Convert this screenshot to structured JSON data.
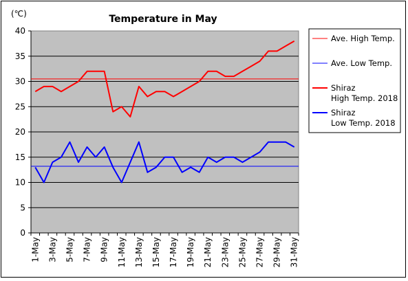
{
  "chart_data": {
    "type": "line",
    "title": "Temperature in May",
    "ylabel": "(℃)",
    "ylim": [
      0,
      40
    ],
    "yticks": [
      0,
      5,
      10,
      15,
      20,
      25,
      30,
      35,
      40
    ],
    "grid": "horizontal",
    "legend_position": "right",
    "x_tick_labels": [
      "1-May",
      "3-May",
      "5-May",
      "7-May",
      "9-May",
      "11-May",
      "13-May",
      "15-May",
      "17-May",
      "19-May",
      "21-May",
      "23-May",
      "25-May",
      "27-May",
      "29-May",
      "31-May"
    ],
    "days": [
      1,
      2,
      3,
      4,
      5,
      6,
      7,
      8,
      9,
      10,
      11,
      12,
      13,
      14,
      15,
      16,
      17,
      18,
      19,
      20,
      21,
      22,
      23,
      24,
      25,
      26,
      27,
      28,
      29,
      30,
      31
    ],
    "series": [
      {
        "name": "Ave. High Temp.",
        "color": "#ff0000",
        "width": 1,
        "constant": 30.5
      },
      {
        "name": "Ave. Low Temp.",
        "color": "#0000ff",
        "width": 1,
        "constant": 13.2
      },
      {
        "name": "Shiraz\nHigh Temp. 2018",
        "color": "#ff0000",
        "width": 2,
        "values": [
          28,
          29,
          29,
          28,
          29,
          30,
          32,
          32,
          32,
          24,
          25,
          23,
          29,
          27,
          28,
          28,
          27,
          28,
          29,
          30,
          32,
          32,
          31,
          31,
          32,
          33,
          34,
          36,
          36,
          37,
          38
        ]
      },
      {
        "name": "Shiraz\nLow Temp. 2018",
        "color": "#0000ff",
        "width": 2,
        "values": [
          13,
          10,
          14,
          15,
          18,
          14,
          17,
          15,
          17,
          13,
          10,
          14,
          18,
          12,
          13,
          15,
          15,
          12,
          13,
          12,
          15,
          14,
          15,
          15,
          14,
          15,
          16,
          18,
          18,
          18,
          17
        ]
      }
    ]
  }
}
